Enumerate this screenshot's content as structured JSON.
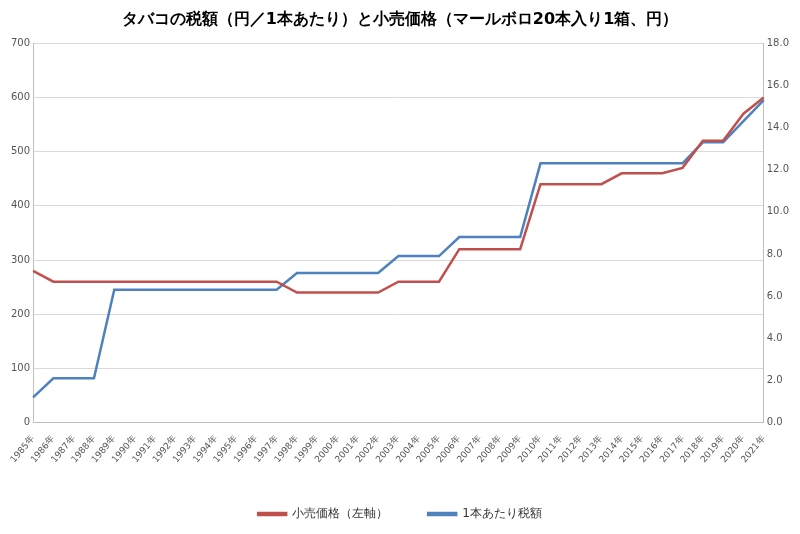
{
  "chart_data": {
    "type": "line",
    "title": "タバコの税額（円／1本あたり）と小売価格（マールボロ20本入り1箱、円）",
    "categories": [
      "1985年",
      "1986年",
      "1987年",
      "1988年",
      "1989年",
      "1990年",
      "1991年",
      "1992年",
      "1993年",
      "1994年",
      "1995年",
      "1996年",
      "1997年",
      "1998年",
      "1999年",
      "2000年",
      "2001年",
      "2002年",
      "2003年",
      "2004年",
      "2005年",
      "2006年",
      "2007年",
      "2008年",
      "2009年",
      "2010年",
      "2011年",
      "2012年",
      "2013年",
      "2014年",
      "2015年",
      "2016年",
      "2017年",
      "2018年",
      "2019年",
      "2020年",
      "2021年"
    ],
    "series": [
      {
        "name": "小売価格（左軸）",
        "color": "#c0504d",
        "values": [
          280,
          260,
          260,
          260,
          260,
          260,
          260,
          260,
          260,
          260,
          260,
          260,
          260,
          240,
          240,
          240,
          240,
          240,
          260,
          260,
          260,
          320,
          320,
          320,
          320,
          440,
          440,
          440,
          440,
          460,
          460,
          460,
          470,
          520,
          520,
          570,
          600
        ]
      },
      {
        "name": "1本あたり税額",
        "color": "#4f81bd",
        "axis": "y2",
        "values": [
          1.2,
          2.1,
          2.1,
          2.1,
          6.3,
          6.3,
          6.3,
          6.3,
          6.3,
          6.3,
          6.3,
          6.3,
          6.3,
          7.1,
          7.1,
          7.1,
          7.1,
          7.1,
          7.9,
          7.9,
          7.9,
          8.8,
          8.8,
          8.8,
          8.8,
          12.3,
          12.3,
          12.3,
          12.3,
          12.3,
          12.3,
          12.3,
          12.3,
          13.3,
          13.3,
          14.3,
          15.3
        ]
      }
    ],
    "ylim": [
      0,
      700
    ],
    "yticks": [
      0,
      100,
      200,
      300,
      400,
      500,
      600,
      700
    ],
    "y2lim": [
      0,
      18
    ],
    "y2ticks": [
      {
        "value": 0,
        "label": "0.0"
      },
      {
        "value": 2,
        "label": "2.0"
      },
      {
        "value": 4,
        "label": "4.0"
      },
      {
        "value": 6,
        "label": "6.0"
      },
      {
        "value": 8,
        "label": "8.0"
      },
      {
        "value": 10,
        "label": "10.0"
      },
      {
        "value": 12,
        "label": "12.0"
      },
      {
        "value": 14,
        "label": "14.0"
      },
      {
        "value": 16,
        "label": "16.0"
      },
      {
        "value": 18,
        "label": "18.0"
      }
    ],
    "grid": true,
    "legend": "bottom"
  }
}
